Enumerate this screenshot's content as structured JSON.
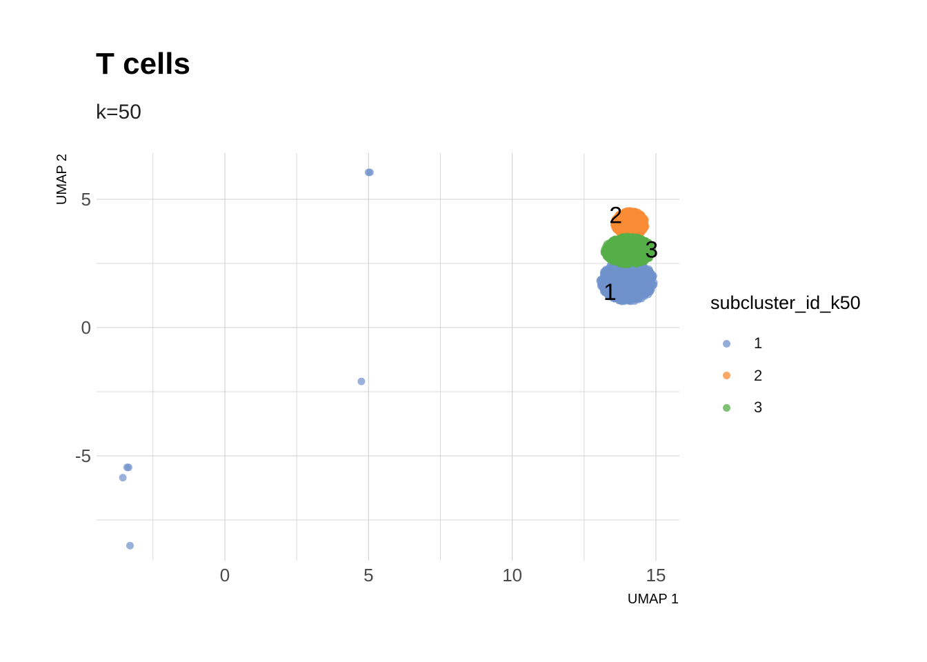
{
  "title": "T cells",
  "subtitle": "k=50",
  "legend": {
    "title": "subcluster_id_k50",
    "items": [
      {
        "label": "1",
        "color": "#6f91cc"
      },
      {
        "label": "2",
        "color": "#f98b36"
      },
      {
        "label": "3",
        "color": "#56ae47"
      }
    ]
  },
  "chart_data": {
    "type": "scatter",
    "xlabel": "UMAP 1",
    "ylabel": "UMAP 2",
    "xlim": [
      -4.5,
      15.8
    ],
    "ylim": [
      -9.0,
      6.8
    ],
    "x_ticks": [
      0,
      5,
      10,
      15
    ],
    "y_ticks": [
      -5,
      0,
      5
    ],
    "grid": true,
    "legend_position": "right",
    "series": [
      {
        "name": "1",
        "color": "#6f91cc",
        "points": [
          [
            5.0,
            6.05
          ],
          [
            5.05,
            6.05
          ],
          [
            4.75,
            -2.1
          ],
          [
            -3.4,
            -5.45
          ],
          [
            -3.35,
            -5.45
          ],
          [
            -3.55,
            -5.85
          ],
          [
            -3.3,
            -8.5
          ]
        ],
        "cluster_region": {
          "cx": 14.0,
          "cy": 1.8,
          "rx": 0.95,
          "ry": 0.8
        }
      },
      {
        "name": "2",
        "color": "#f98b36",
        "points": [],
        "cluster_region": {
          "cx": 14.1,
          "cy": 4.05,
          "rx": 0.55,
          "ry": 0.5
        }
      },
      {
        "name": "3",
        "color": "#56ae47",
        "points": [],
        "cluster_region": {
          "cx": 14.05,
          "cy": 3.0,
          "rx": 0.85,
          "ry": 0.55
        }
      }
    ],
    "annotations": [
      {
        "text": "1",
        "x": 13.4,
        "y": 1.4
      },
      {
        "text": "2",
        "x": 13.6,
        "y": 4.4
      },
      {
        "text": "3",
        "x": 14.85,
        "y": 3.05
      }
    ]
  }
}
